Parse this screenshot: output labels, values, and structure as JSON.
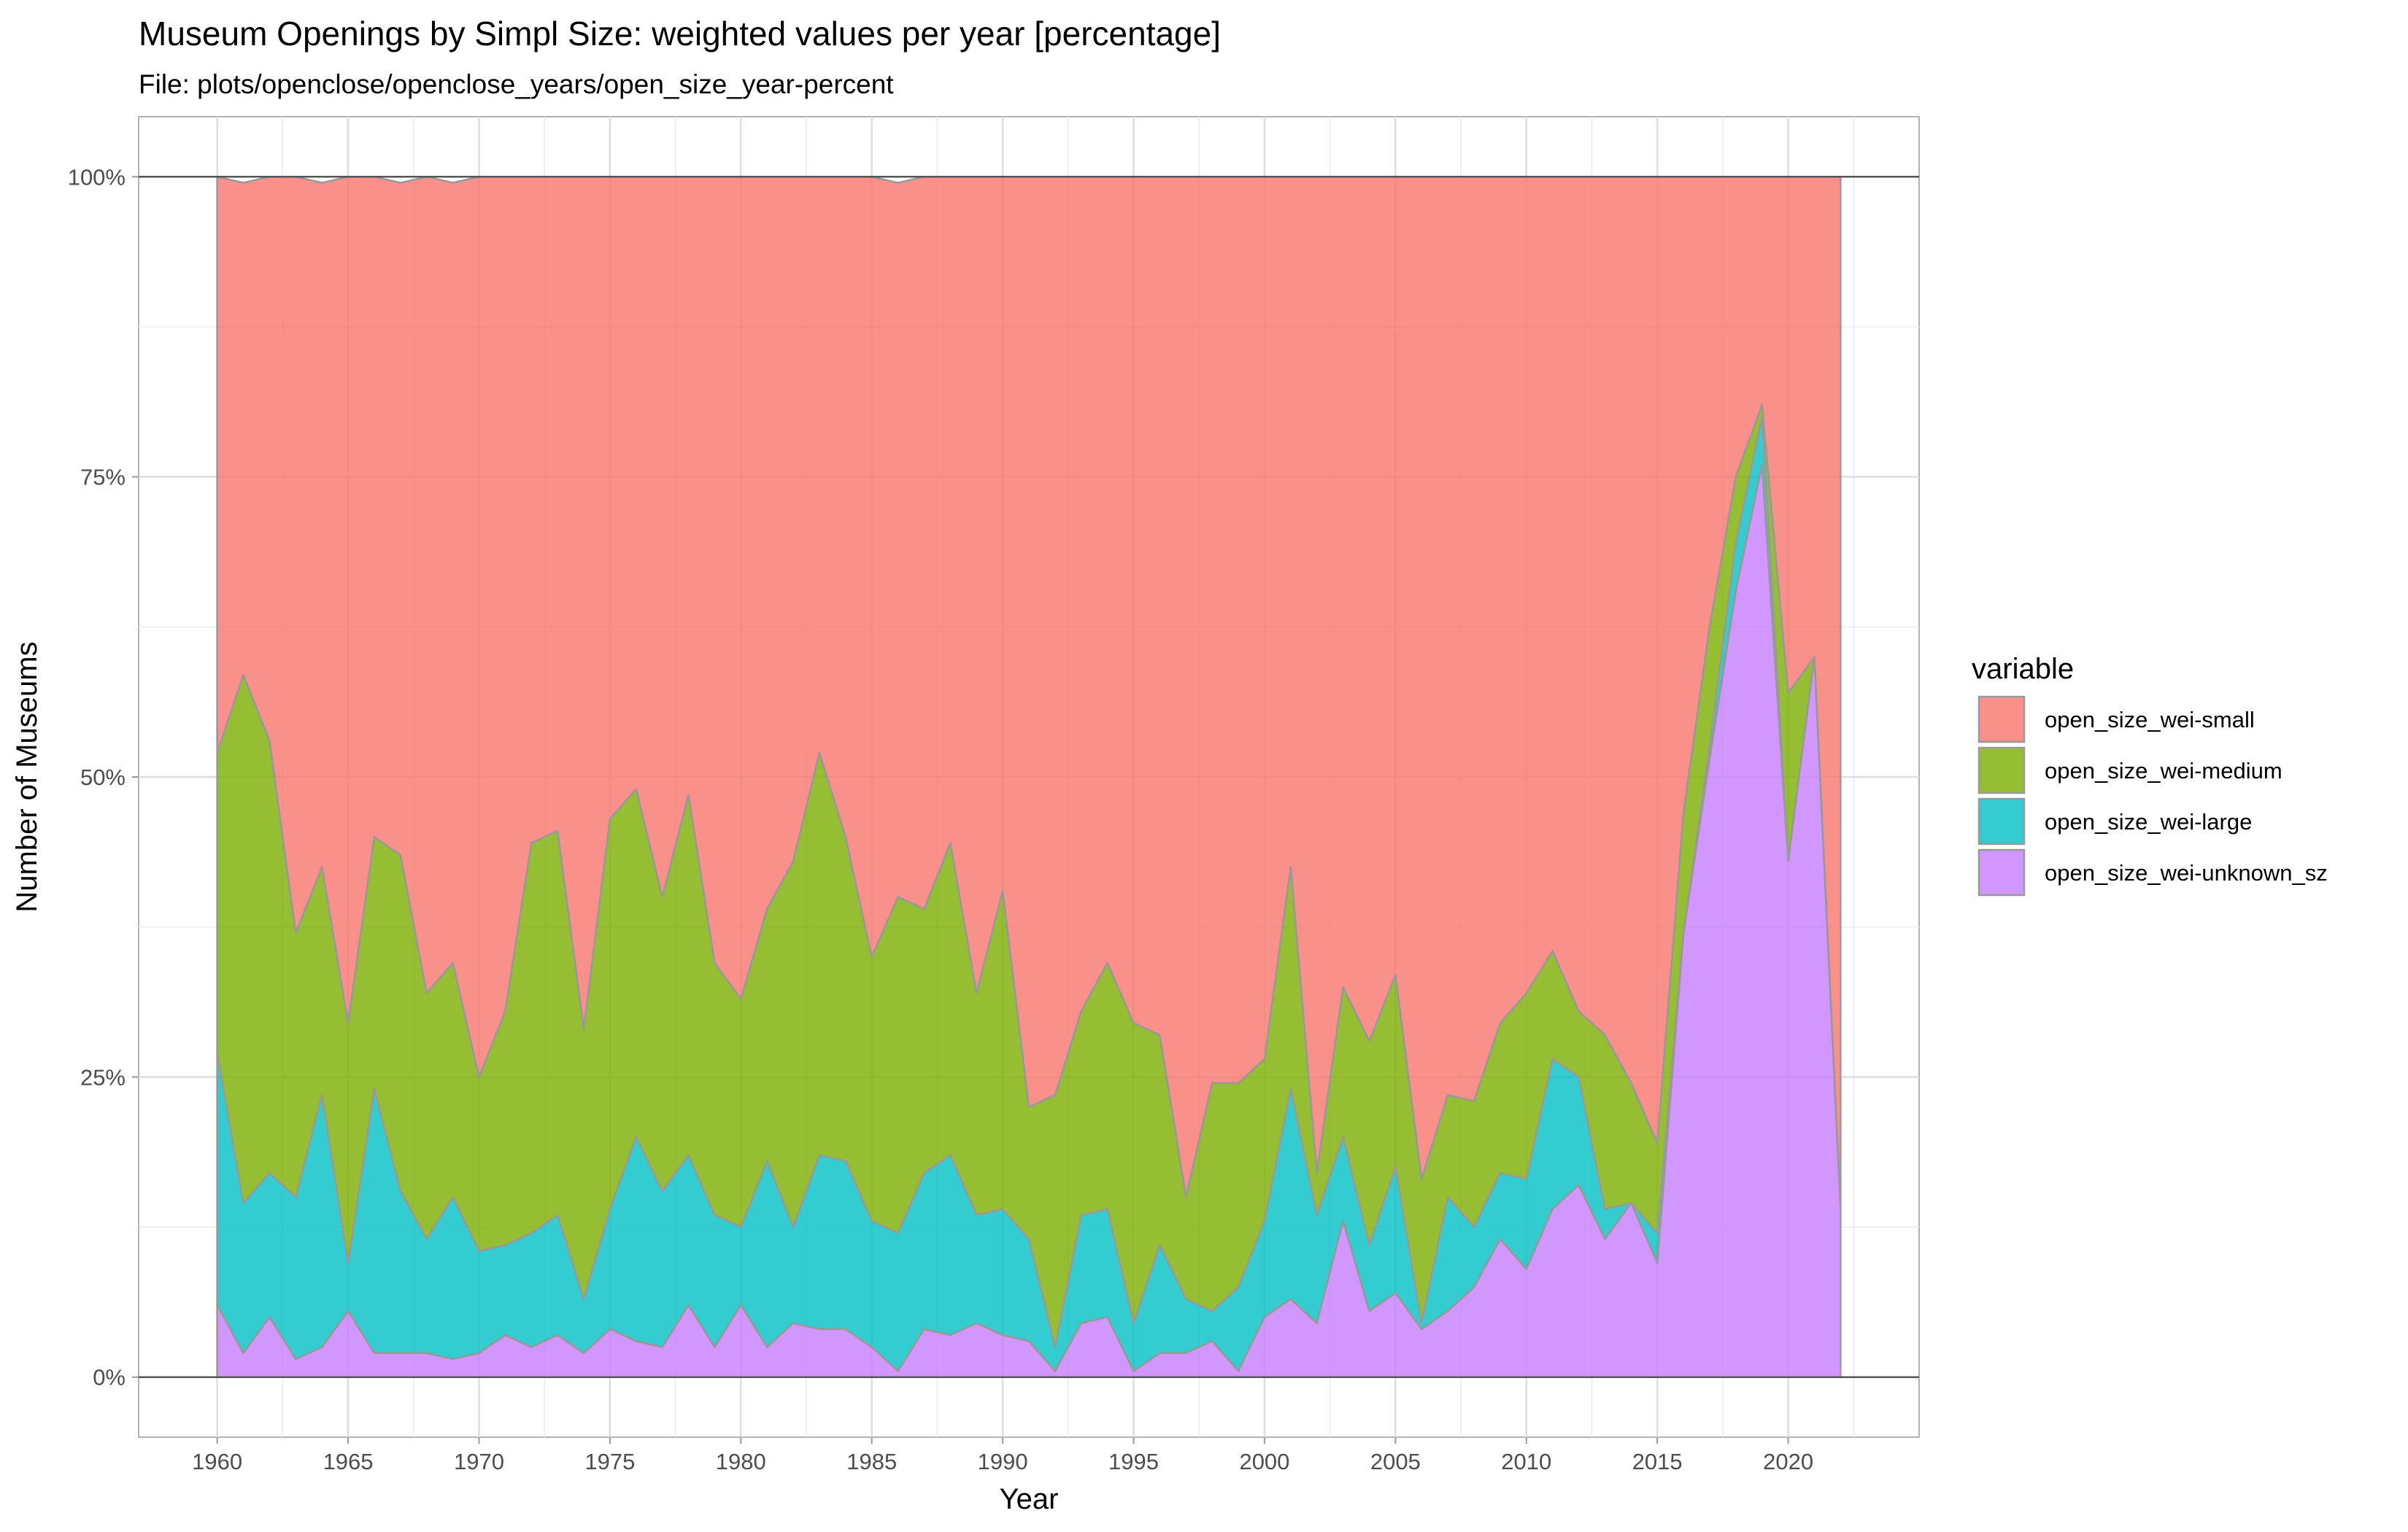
{
  "chart_data": {
    "type": "area",
    "stacked": true,
    "normalized": true,
    "title": "Museum Openings by Simpl Size: weighted values per year [percentage]",
    "subtitle": "File: plots/openclose/openclose_years/open_size_year-percent",
    "xlabel": "Year",
    "ylabel": "Number of Museums",
    "xlim": [
      1957,
      2025
    ],
    "ylim": [
      -0.05,
      1.05
    ],
    "x_ticks": [
      1960,
      1965,
      1970,
      1975,
      1980,
      1985,
      1990,
      1995,
      2000,
      2005,
      2010,
      2015,
      2020
    ],
    "y_ticks": [
      0,
      0.25,
      0.5,
      0.75,
      1.0
    ],
    "y_tick_labels": [
      "0%",
      "25%",
      "50%",
      "75%",
      "100%"
    ],
    "grid": true,
    "legend": {
      "title": "variable",
      "position": "right"
    },
    "x": [
      1960,
      1961,
      1962,
      1963,
      1964,
      1965,
      1966,
      1967,
      1968,
      1969,
      1970,
      1971,
      1972,
      1973,
      1974,
      1975,
      1976,
      1977,
      1978,
      1979,
      1980,
      1981,
      1982,
      1983,
      1984,
      1985,
      1986,
      1987,
      1988,
      1989,
      1990,
      1991,
      1992,
      1993,
      1994,
      1995,
      1996,
      1997,
      1998,
      1999,
      2000,
      2001,
      2002,
      2003,
      2004,
      2005,
      2006,
      2007,
      2008,
      2009,
      2010,
      2011,
      2012,
      2013,
      2014,
      2015,
      2016,
      2017,
      2018,
      2019,
      2020,
      2021,
      2022
    ],
    "stack_order": "bottom-to-top: unknown_sz, large, medium, small",
    "series": [
      {
        "name": "open_size_wei-small",
        "color": "#F8766D",
        "values": [
          0.48,
          0.41,
          0.47,
          0.63,
          0.57,
          0.71,
          0.55,
          0.56,
          0.68,
          0.65,
          0.75,
          0.695,
          0.555,
          0.545,
          0.71,
          0.535,
          0.51,
          0.6,
          0.515,
          0.655,
          0.685,
          0.61,
          0.57,
          0.48,
          0.55,
          0.65,
          0.595,
          0.61,
          0.555,
          0.68,
          0.595,
          0.775,
          0.765,
          0.695,
          0.655,
          0.705,
          0.715,
          0.85,
          0.755,
          0.755,
          0.735,
          0.575,
          0.83,
          0.675,
          0.72,
          0.665,
          0.835,
          0.765,
          0.77,
          0.705,
          0.68,
          0.645,
          0.695,
          0.715,
          0.755,
          0.805,
          0.53,
          0.375,
          0.25,
          0.19,
          0.43,
          0.4,
          0.86
        ]
      },
      {
        "name": "open_size_wei-medium",
        "color": "#7CAE00",
        "values": [
          0.25,
          0.44,
          0.36,
          0.22,
          0.19,
          0.2,
          0.21,
          0.28,
          0.205,
          0.195,
          0.145,
          0.195,
          0.325,
          0.32,
          0.225,
          0.325,
          0.29,
          0.245,
          0.3,
          0.21,
          0.19,
          0.21,
          0.305,
          0.335,
          0.27,
          0.22,
          0.28,
          0.22,
          0.26,
          0.185,
          0.265,
          0.11,
          0.21,
          0.17,
          0.205,
          0.25,
          0.175,
          0.085,
          0.19,
          0.17,
          0.135,
          0.185,
          0.035,
          0.125,
          0.17,
          0.16,
          0.12,
          0.085,
          0.105,
          0.125,
          0.155,
          0.09,
          0.055,
          0.145,
          0.1,
          0.075,
          0.1,
          0.1,
          0.055,
          0.01,
          0.14,
          0.0,
          0.0
        ]
      },
      {
        "name": "open_size_wei-large",
        "color": "#00BFC4",
        "values": [
          0.21,
          0.125,
          0.12,
          0.135,
          0.21,
          0.04,
          0.22,
          0.135,
          0.095,
          0.135,
          0.085,
          0.075,
          0.095,
          0.1,
          0.045,
          0.1,
          0.17,
          0.13,
          0.125,
          0.11,
          0.065,
          0.155,
          0.08,
          0.145,
          0.14,
          0.105,
          0.115,
          0.13,
          0.15,
          0.09,
          0.105,
          0.085,
          0.02,
          0.09,
          0.09,
          0.04,
          0.09,
          0.045,
          0.025,
          0.07,
          0.08,
          0.175,
          0.09,
          0.07,
          0.055,
          0.105,
          0.005,
          0.095,
          0.05,
          0.055,
          0.075,
          0.125,
          0.09,
          0.025,
          0.0,
          0.025,
          0.0,
          0.01,
          0.04,
          0.04,
          0.0,
          0.0,
          0.0
        ]
      },
      {
        "name": "open_size_wei-unknown_sz",
        "color": "#C77CFF",
        "values": [
          0.06,
          0.02,
          0.05,
          0.015,
          0.025,
          0.055,
          0.02,
          0.02,
          0.02,
          0.015,
          0.02,
          0.035,
          0.025,
          0.035,
          0.02,
          0.04,
          0.03,
          0.025,
          0.06,
          0.025,
          0.06,
          0.025,
          0.045,
          0.04,
          0.04,
          0.025,
          0.005,
          0.04,
          0.035,
          0.045,
          0.035,
          0.03,
          0.005,
          0.045,
          0.05,
          0.005,
          0.02,
          0.02,
          0.03,
          0.005,
          0.05,
          0.065,
          0.045,
          0.13,
          0.055,
          0.07,
          0.04,
          0.055,
          0.075,
          0.115,
          0.09,
          0.14,
          0.16,
          0.115,
          0.145,
          0.095,
          0.37,
          0.515,
          0.655,
          0.76,
          0.43,
          0.6,
          0.14
        ]
      }
    ]
  }
}
